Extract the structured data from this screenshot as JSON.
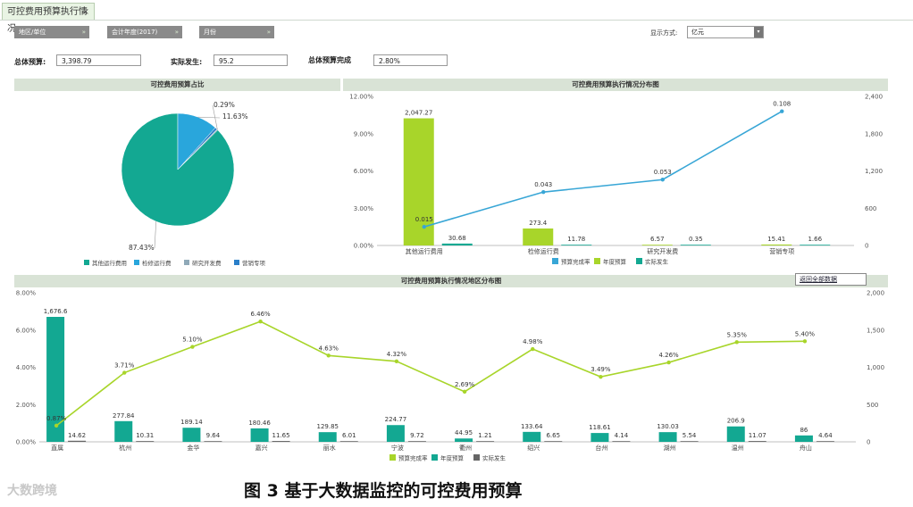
{
  "tab": {
    "title": "可控费用预算执行情况",
    "close": "×"
  },
  "filters": {
    "region": "地区/单位",
    "year": "会计年度(2017)",
    "month": "月份",
    "arrow": "»"
  },
  "display": {
    "label": "显示方式:",
    "value": "亿元",
    "btn": "▾"
  },
  "summary": {
    "budget_label": "总体预算:",
    "budget_value": "3,398.79",
    "actual_label": "实际发生:",
    "actual_value": "95.2",
    "completion_label": "总体预算完成",
    "completion_value": "2.80%"
  },
  "panels": {
    "pie_title": "可控费用预算占比",
    "dist_title": "可控费用预算执行情况分布图",
    "region_title": "可控费用预算执行情况地区分布图",
    "view_all": "返回全部数据"
  },
  "caption": "图 3 基于大数据监控的可控费用预算",
  "watermark": "大数跨境",
  "colors": {
    "teal": "#13a892",
    "lime": "#a8d52a",
    "blue": "#2e9bd6",
    "gray": "#555555",
    "line_blue": "#38a6d6",
    "line_lime": "#a8d52a"
  },
  "chart_data": [
    {
      "type": "pie",
      "title": "可控费用预算占比",
      "slices": [
        {
          "name": "其他运行费用",
          "value": 87.43,
          "label": "87.43%",
          "color": "#13a892"
        },
        {
          "name": "检修运行费",
          "value": 11.63,
          "label": "11.63%",
          "color": "#29a6dc"
        },
        {
          "name": "研究开发费",
          "value": 0.29,
          "label": "0.29%",
          "color": "#8fa9b8"
        },
        {
          "name": "营销专项",
          "value": 0.65,
          "label": "",
          "color": "#2a7fc9"
        }
      ],
      "legend": "bottom"
    },
    {
      "type": "bar",
      "title": "可控费用预算执行情况分布图",
      "categories": [
        "其他运行费用",
        "检修运行费",
        "研究开发费",
        "营销专项"
      ],
      "y_left_ticks": [
        "0.00%",
        "3.00%",
        "6.00%",
        "9.00%",
        "12.00%"
      ],
      "y_right_ticks": [
        "0",
        "600",
        "1,200",
        "1,800",
        "2,400"
      ],
      "ylim_right": [
        0,
        2400
      ],
      "ylim_left": [
        0,
        0.12
      ],
      "series": [
        {
          "name": "预算完成率",
          "kind": "line",
          "axis": "left",
          "values": [
            0.015,
            0.043,
            0.053,
            0.108
          ],
          "labels": [
            "0.015",
            "0.043",
            "0.053",
            "0.108"
          ],
          "color": "#38a6d6"
        },
        {
          "name": "年度预算",
          "kind": "bar",
          "axis": "right",
          "values": [
            2047.27,
            273.4,
            6.57,
            15.41
          ],
          "labels": [
            "2,047.27",
            "273.4",
            "6.57",
            "15.41"
          ],
          "color": "#a8d52a"
        },
        {
          "name": "实际发生",
          "kind": "bar",
          "axis": "right",
          "values": [
            30.68,
            11.78,
            0.35,
            1.66
          ],
          "labels": [
            "30.68",
            "11.78",
            "0.35",
            "1.66"
          ],
          "color": "#13a892"
        }
      ],
      "legend": "bottom"
    },
    {
      "type": "bar",
      "title": "可控费用预算执行情况地区分布图",
      "categories": [
        "直属",
        "杭州",
        "金华",
        "嘉兴",
        "丽水",
        "宁波",
        "衢州",
        "绍兴",
        "台州",
        "湖州",
        "温州",
        "舟山"
      ],
      "y_left_ticks": [
        "0.00%",
        "2.00%",
        "4.00%",
        "6.00%",
        "8.00%"
      ],
      "y_right_ticks": [
        "0",
        "500",
        "1,000",
        "1,500",
        "2,000"
      ],
      "ylim_right": [
        0,
        2000
      ],
      "ylim_left": [
        0,
        0.08
      ],
      "series": [
        {
          "name": "预算完成率",
          "kind": "line",
          "axis": "left",
          "values": [
            0.0087,
            0.0371,
            0.051,
            0.0646,
            0.0463,
            0.0432,
            0.0269,
            0.0498,
            0.0349,
            0.0426,
            0.0535,
            0.054
          ],
          "labels": [
            "0.87%",
            "3.71%",
            "5.10%",
            "6.46%",
            "4.63%",
            "4.32%",
            "2.69%",
            "4.98%",
            "3.49%",
            "4.26%",
            "5.35%",
            "5.40%"
          ],
          "color": "#a8d52a"
        },
        {
          "name": "年度预算",
          "kind": "bar",
          "axis": "right",
          "values": [
            1676.6,
            277.84,
            189.14,
            180.46,
            129.85,
            224.77,
            44.95,
            133.64,
            118.61,
            130.03,
            206.9,
            86
          ],
          "labels": [
            "1,676.6",
            "277.84",
            "189.14",
            "180.46",
            "129.85",
            "224.77",
            "44.95",
            "133.64",
            "118.61",
            "130.03",
            "206.9",
            "86"
          ],
          "color": "#13a892"
        },
        {
          "name": "实际发生",
          "kind": "bar",
          "axis": "right",
          "values": [
            14.62,
            10.31,
            9.64,
            11.65,
            6.01,
            9.72,
            1.21,
            6.65,
            4.14,
            5.54,
            11.07,
            4.64
          ],
          "labels": [
            "14.62",
            "10.31",
            "9.64",
            "11.65",
            "6.01",
            "9.72",
            "1.21",
            "6.65",
            "4.14",
            "5.54",
            "11.07",
            "4.64"
          ],
          "color": "#666666"
        }
      ],
      "legend": "bottom"
    }
  ]
}
